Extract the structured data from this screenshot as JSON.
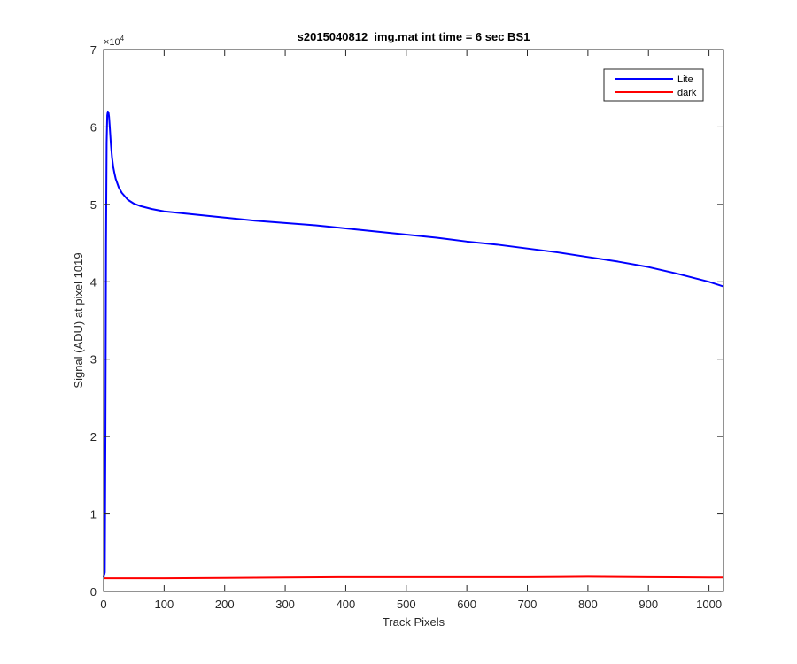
{
  "chart_data": {
    "type": "line",
    "title": "s2015040812_img.mat int time = 6 sec   BS1",
    "xlabel": "Track Pixels",
    "ylabel": "Signal (ADU) at pixel 1019",
    "xlim": [
      0,
      1024
    ],
    "ylim": [
      0,
      70000
    ],
    "xticks": [
      0,
      100,
      200,
      300,
      400,
      500,
      600,
      700,
      800,
      900,
      1000
    ],
    "xtick_labels": [
      "0",
      "100",
      "200",
      "300",
      "400",
      "500",
      "600",
      "700",
      "800",
      "900",
      "1000"
    ],
    "yticks": [
      0,
      10000,
      20000,
      30000,
      40000,
      50000,
      60000,
      70000
    ],
    "ytick_labels": [
      "0",
      "1",
      "2",
      "3",
      "4",
      "5",
      "6",
      "7"
    ],
    "y_exponent_label": "×10",
    "y_exponent_power": "4",
    "grid": false,
    "legend_position": "top-right",
    "series": [
      {
        "name": "Lite",
        "color": "#0000ff",
        "x": [
          0,
          2,
          3,
          4,
          5,
          6,
          7,
          8,
          9,
          10,
          11,
          12,
          14,
          16,
          18,
          20,
          25,
          30,
          40,
          50,
          60,
          80,
          100,
          150,
          200,
          250,
          300,
          350,
          400,
          450,
          500,
          550,
          600,
          650,
          700,
          750,
          800,
          850,
          900,
          950,
          1000,
          1024
        ],
        "y": [
          1800,
          2500,
          20000,
          45000,
          58000,
          61500,
          62000,
          61900,
          61300,
          60200,
          59000,
          57800,
          56000,
          54800,
          54000,
          53300,
          52200,
          51500,
          50600,
          50100,
          49800,
          49400,
          49100,
          48700,
          48300,
          47900,
          47600,
          47300,
          46900,
          46500,
          46100,
          45700,
          45200,
          44800,
          44300,
          43800,
          43200,
          42600,
          41900,
          41000,
          40000,
          39400
        ]
      },
      {
        "name": "dark",
        "color": "#ff0000",
        "x": [
          0,
          100,
          200,
          300,
          400,
          500,
          600,
          700,
          800,
          900,
          1000,
          1024
        ],
        "y": [
          1700,
          1700,
          1750,
          1800,
          1850,
          1850,
          1850,
          1850,
          1900,
          1850,
          1800,
          1800
        ]
      }
    ]
  }
}
